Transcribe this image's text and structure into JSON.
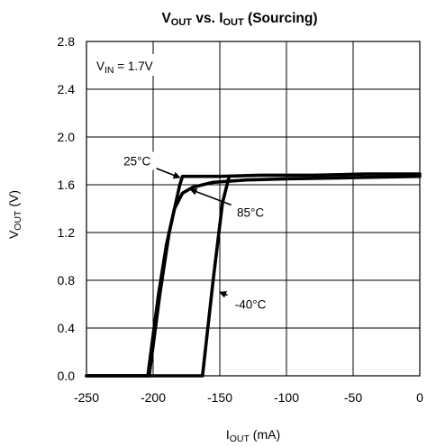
{
  "chart_data": {
    "type": "line",
    "title": {
      "main_pre": "V",
      "main_sub": "OUT",
      "mid": " vs. I",
      "mid_sub": "OUT",
      "post": " (Sourcing)"
    },
    "xlabel": {
      "pre": "I",
      "sub": "OUT",
      "post": " (mA)"
    },
    "ylabel": {
      "pre": "V",
      "sub": "OUT",
      "post": " (V)"
    },
    "xlim": [
      -250,
      0
    ],
    "ylim": [
      0,
      2.8
    ],
    "x_ticks": [
      "-250",
      "-200",
      "-150",
      "-100",
      "-50",
      "0"
    ],
    "y_ticks": [
      "0.0",
      "0.4",
      "0.8",
      "1.2",
      "1.6",
      "2.0",
      "2.4",
      "2.8"
    ],
    "grid": true,
    "condition": {
      "pre": "V",
      "sub": "IN",
      "post": " = 1.7V"
    },
    "series": [
      {
        "name": "25°C",
        "color": "#000000",
        "x": [
          -250,
          -203,
          -195,
          -188,
          -180,
          -178,
          -150,
          -120,
          -80,
          -40,
          0
        ],
        "y": [
          0,
          0,
          0.68,
          1.2,
          1.6,
          1.67,
          1.67,
          1.68,
          1.68,
          1.69,
          1.69
        ]
      },
      {
        "name": "85°C",
        "color": "#000000",
        "x": [
          -250,
          -204,
          -196,
          -190,
          -184,
          -178,
          -170,
          -155,
          -130,
          -100,
          -50,
          0
        ],
        "y": [
          0,
          0,
          0.68,
          1.1,
          1.4,
          1.53,
          1.58,
          1.62,
          1.64,
          1.65,
          1.66,
          1.67
        ]
      },
      {
        "name": "-40°C",
        "color": "#000000",
        "x": [
          -250,
          -163,
          -155,
          -148,
          -143
        ],
        "y": [
          0,
          0,
          0.8,
          1.45,
          1.67
        ]
      }
    ],
    "annotations": [
      {
        "text": "25°C",
        "x": -212,
        "y": 1.8,
        "arrow_to": [
          -180,
          1.66
        ]
      },
      {
        "text": "85°C",
        "x": -127,
        "y": 1.37,
        "arrow_to": [
          -172,
          1.56
        ]
      },
      {
        "text": "-40°C",
        "x": -127,
        "y": 0.6,
        "arrow_to": [
          -150,
          0.7
        ]
      }
    ]
  }
}
